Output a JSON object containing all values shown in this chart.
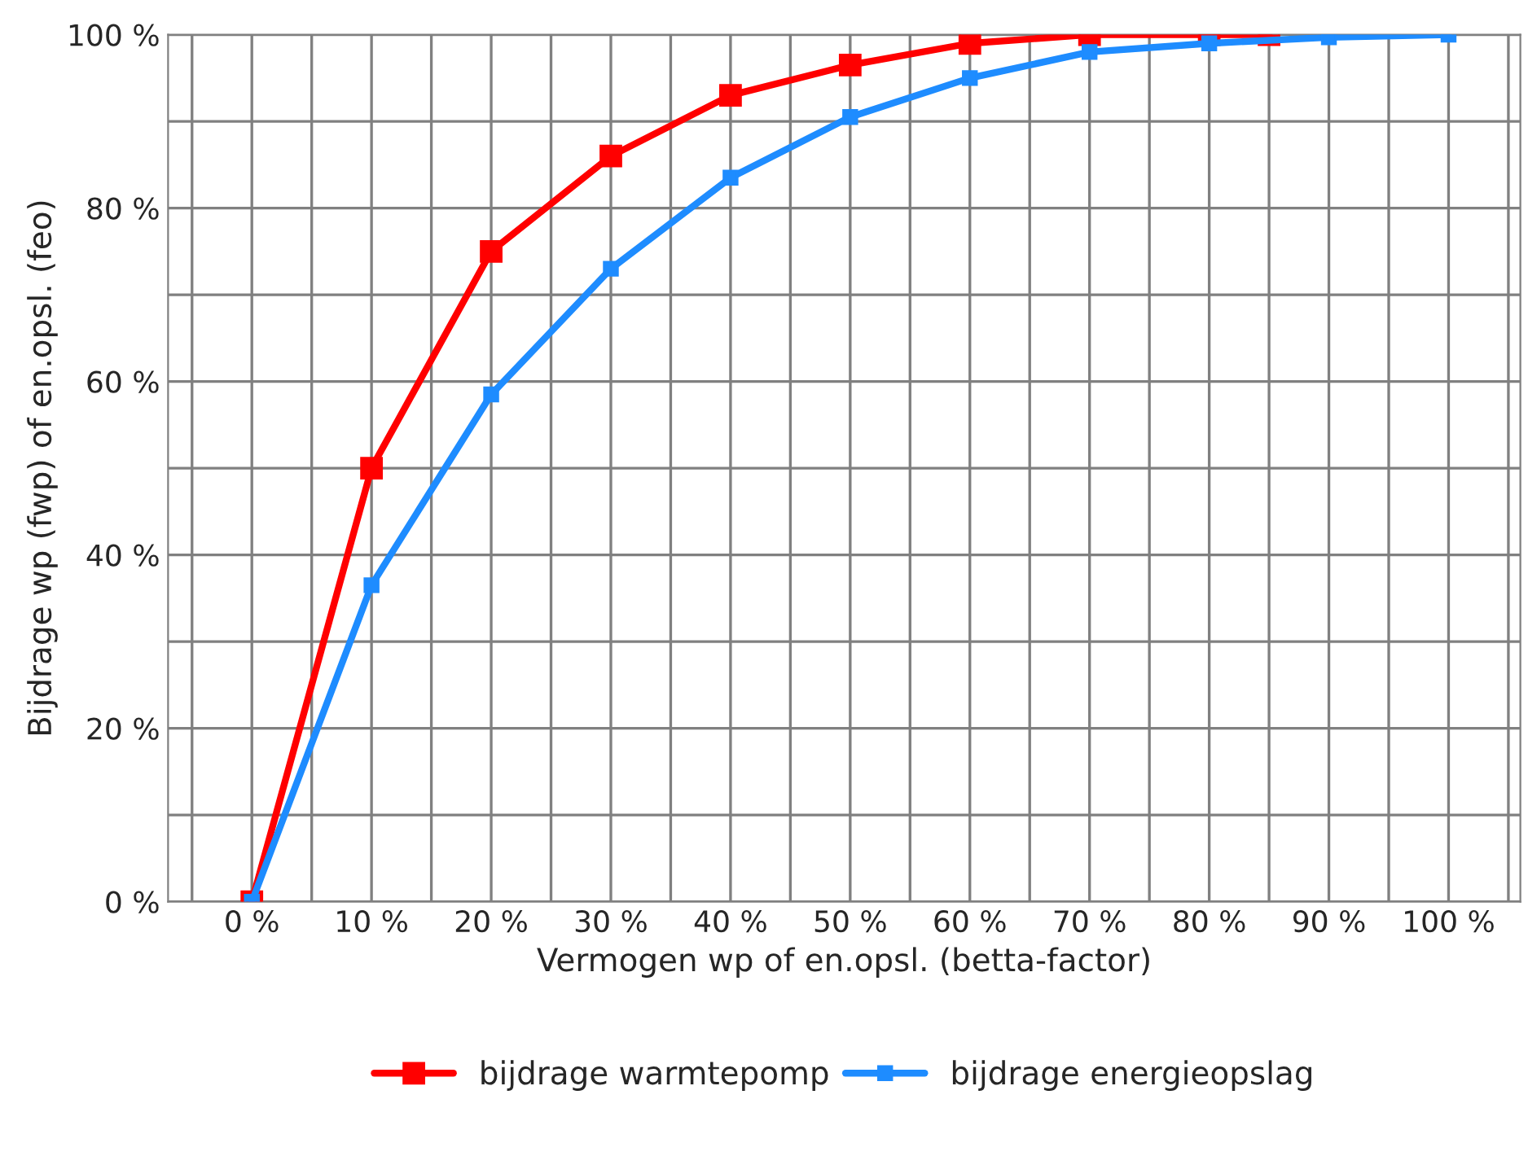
{
  "chart_data": {
    "type": "line",
    "xlabel": "Vermogen wp of en.opsl. (betta-factor)",
    "ylabel": "Bijdrage wp (fwp) of en.opsl. (feo)",
    "xlim": [
      -7,
      106
    ],
    "ylim": [
      0,
      100
    ],
    "xticks": [
      {
        "value": -5,
        "label": null
      },
      {
        "value": 0,
        "label": "0 %"
      },
      {
        "value": 5,
        "label": null
      },
      {
        "value": 10,
        "label": "10 %"
      },
      {
        "value": 15,
        "label": null
      },
      {
        "value": 20,
        "label": "20 %"
      },
      {
        "value": 25,
        "label": null
      },
      {
        "value": 30,
        "label": "30 %"
      },
      {
        "value": 35,
        "label": null
      },
      {
        "value": 40,
        "label": "40 %"
      },
      {
        "value": 45,
        "label": null
      },
      {
        "value": 50,
        "label": "50 %"
      },
      {
        "value": 55,
        "label": null
      },
      {
        "value": 60,
        "label": "60 %"
      },
      {
        "value": 65,
        "label": null
      },
      {
        "value": 70,
        "label": "70 %"
      },
      {
        "value": 75,
        "label": null
      },
      {
        "value": 80,
        "label": "80 %"
      },
      {
        "value": 85,
        "label": null
      },
      {
        "value": 90,
        "label": "90 %"
      },
      {
        "value": 95,
        "label": null
      },
      {
        "value": 100,
        "label": "100 %"
      },
      {
        "value": 105,
        "label": null
      }
    ],
    "yticks": [
      {
        "value": 0,
        "label": "0 %"
      },
      {
        "value": 10,
        "label": null
      },
      {
        "value": 20,
        "label": "20 %"
      },
      {
        "value": 30,
        "label": null
      },
      {
        "value": 40,
        "label": "40 %"
      },
      {
        "value": 50,
        "label": null
      },
      {
        "value": 60,
        "label": "60 %"
      },
      {
        "value": 70,
        "label": null
      },
      {
        "value": 80,
        "label": "80 %"
      },
      {
        "value": 90,
        "label": null
      },
      {
        "value": 100,
        "label": "100 %"
      }
    ],
    "grid": true,
    "legend": "bottom",
    "marker": "square",
    "line_style": "solid",
    "series": [
      {
        "name": "bijdrage warmtepomp",
        "color": "#ff0000",
        "x": [
          0,
          10,
          20,
          30,
          40,
          50,
          60,
          70,
          80,
          85
        ],
        "values": [
          0,
          50,
          75,
          86,
          93,
          96.5,
          99,
          100,
          100,
          100
        ]
      },
      {
        "name": "bijdrage energieopslag",
        "color": "#1e8cff",
        "x": [
          0,
          10,
          20,
          30,
          40,
          50,
          60,
          70,
          80,
          90,
          100
        ],
        "values": [
          0,
          36.5,
          58.5,
          73,
          83.5,
          90.5,
          95,
          98,
          99,
          99.7,
          100
        ]
      }
    ]
  }
}
